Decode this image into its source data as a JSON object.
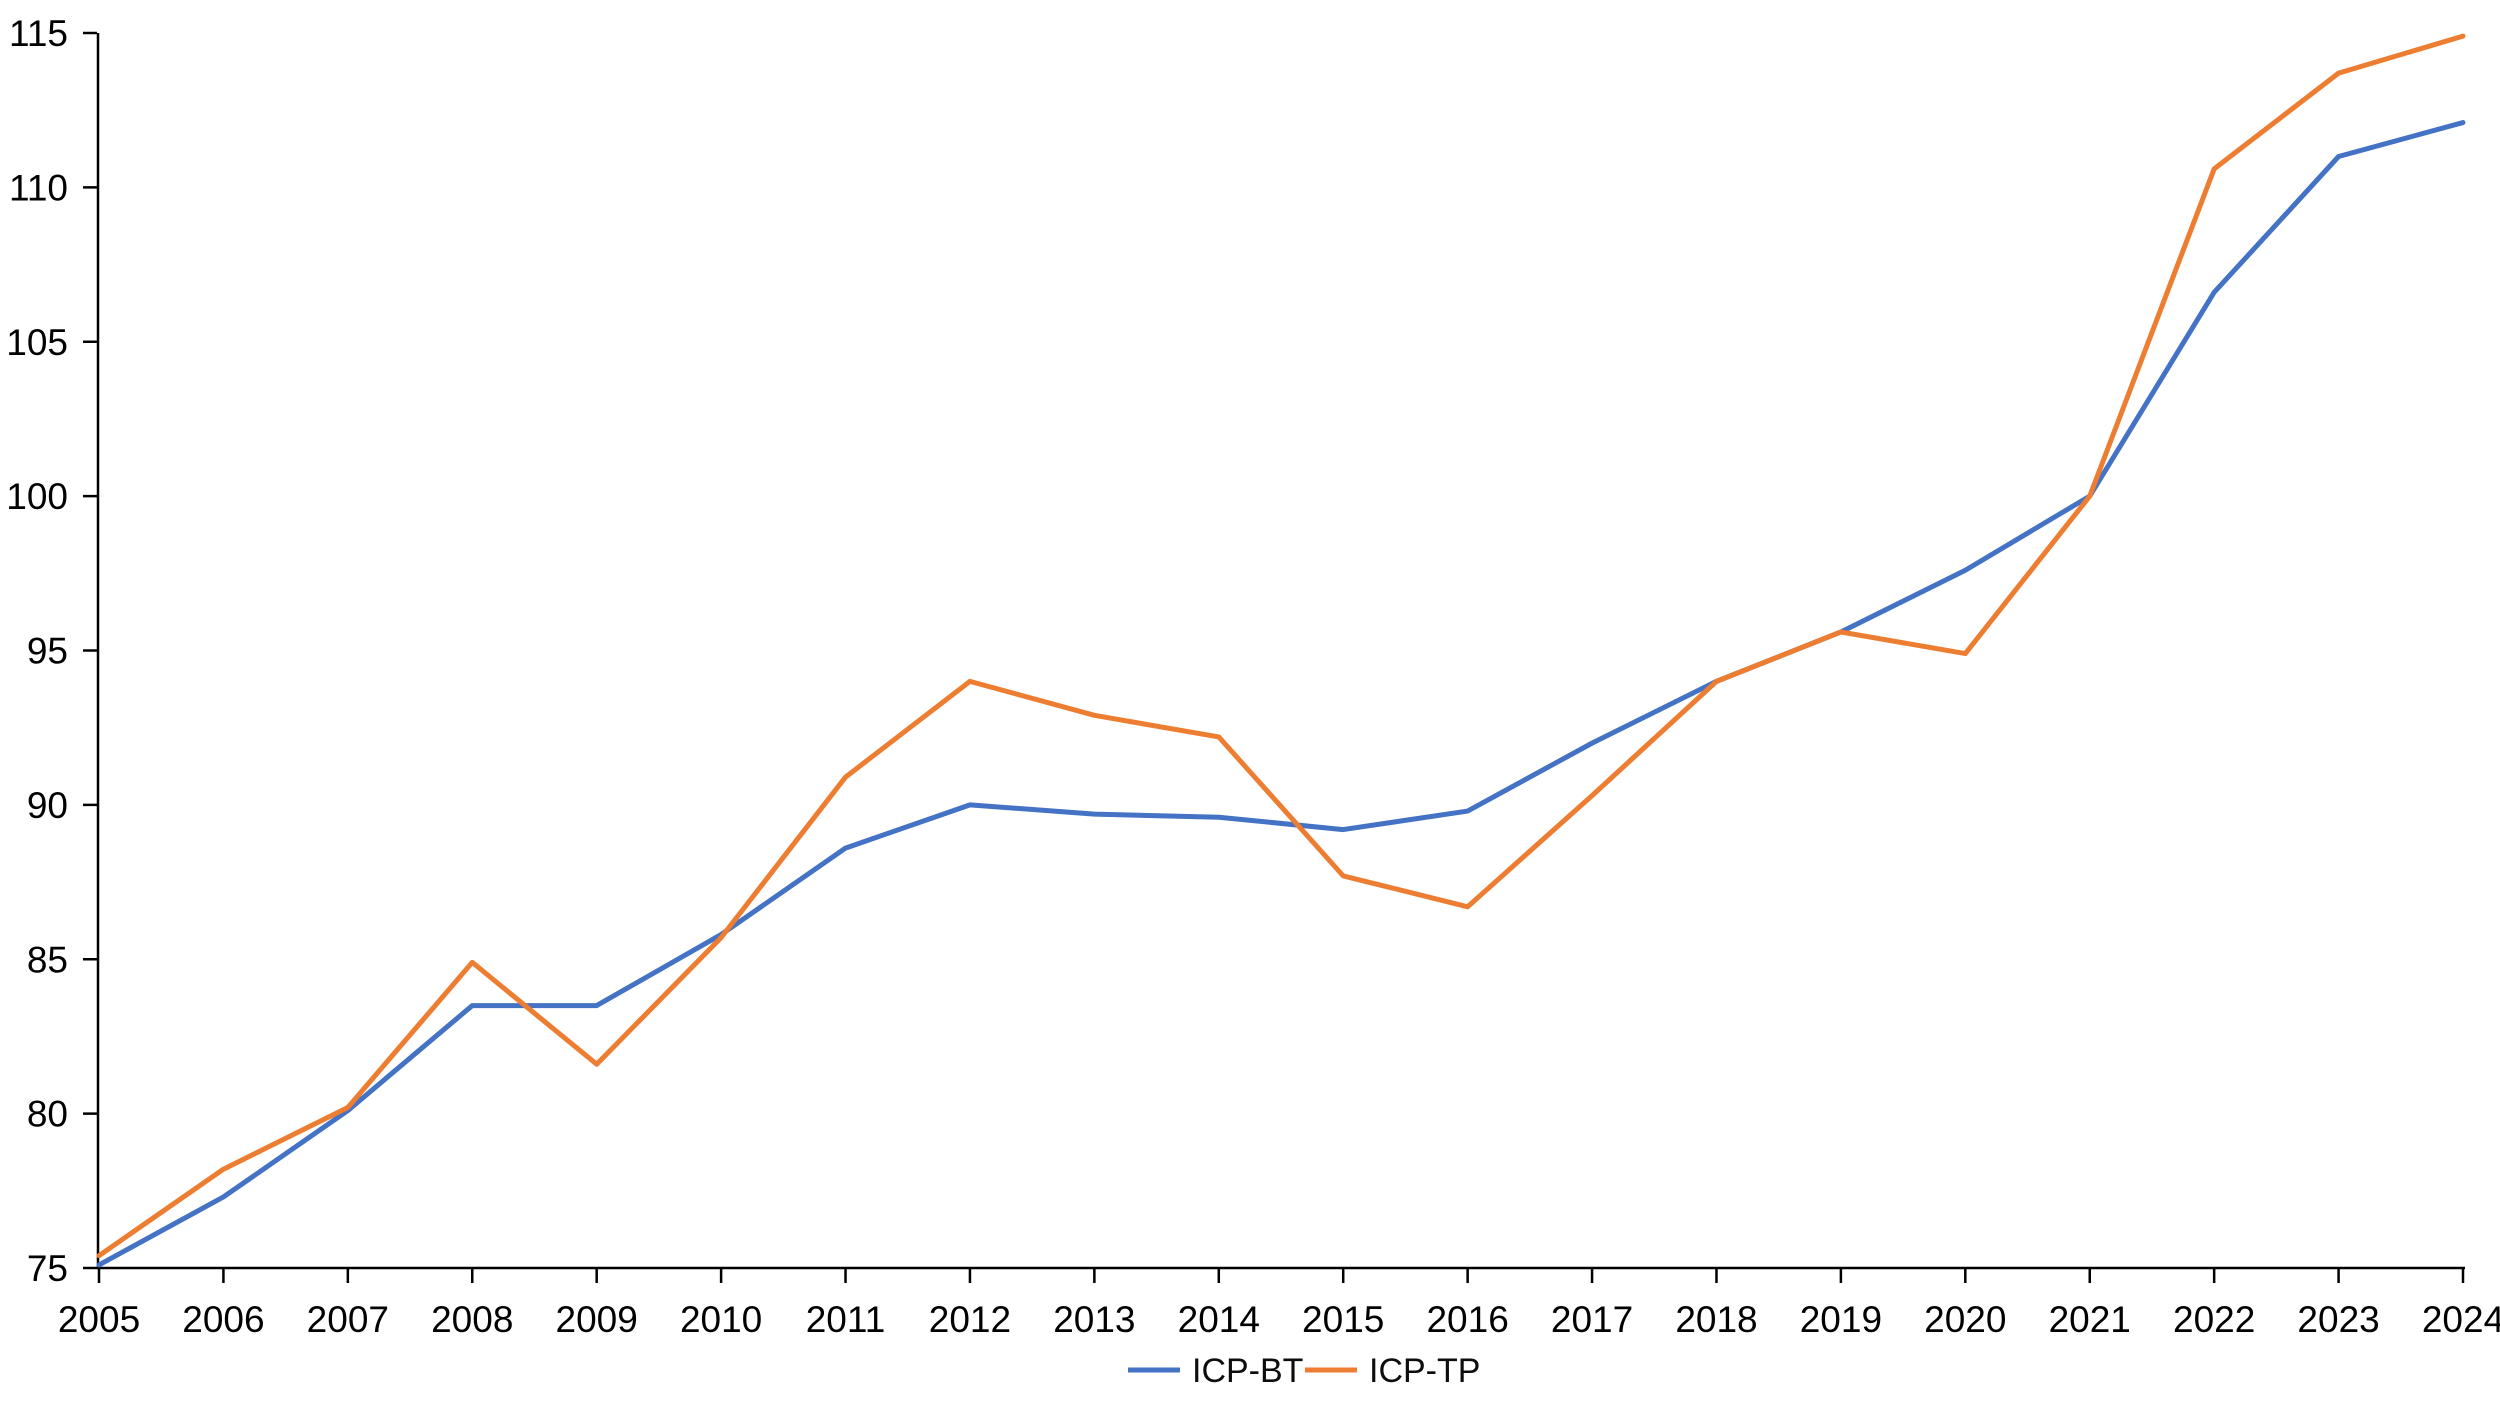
{
  "chart_data": {
    "type": "line",
    "title": "",
    "xlabel": "",
    "ylabel": "",
    "categories": [
      "2005",
      "2006",
      "2007",
      "2008",
      "2009",
      "2010",
      "2011",
      "2012",
      "2013",
      "2014",
      "2015",
      "2016",
      "2017",
      "2018",
      "2019",
      "2020",
      "2021",
      "2022",
      "2023",
      "2024"
    ],
    "series": [
      {
        "name": "ICP-BT",
        "color": "#4472C4",
        "values": [
          75.1,
          77.3,
          80.1,
          83.5,
          83.5,
          85.8,
          88.6,
          90.0,
          89.7,
          89.6,
          89.2,
          89.8,
          92.0,
          94.0,
          95.6,
          97.6,
          100.0,
          106.6,
          111.0,
          112.1
        ]
      },
      {
        "name": "ICP-TP",
        "color": "#ED7D31",
        "values": [
          75.4,
          78.2,
          80.2,
          84.9,
          81.6,
          85.7,
          90.9,
          94.0,
          92.9,
          92.2,
          87.7,
          86.7,
          90.3,
          94.0,
          95.6,
          94.9,
          100.0,
          110.6,
          113.7,
          114.9
        ]
      }
    ],
    "ylim": [
      75,
      115
    ],
    "y_ticks": [
      75,
      80,
      85,
      90,
      95,
      100,
      105,
      110,
      115
    ],
    "grid": false,
    "legend_position": "bottom-center",
    "axis_color": "#000000",
    "background": "#FFFFFF"
  }
}
